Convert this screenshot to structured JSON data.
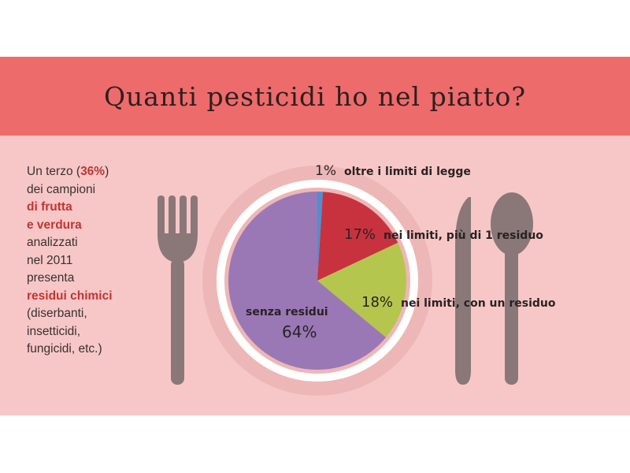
{
  "title": "Quanti pesticidi ho nel piatto?",
  "intro": {
    "t1": "Un terzo (",
    "pct": "36%",
    "t2": ")",
    "t3": "dei campioni",
    "t4": "di frutta",
    "t5": "e verdura",
    "t6": "analizzati",
    "t7": "nel 2011",
    "t8": "presenta",
    "t9": "residui chimici",
    "t10": "(diserbanti,",
    "t11": "insetticidi,",
    "t12": "fungicidi, etc.)"
  },
  "colors": {
    "banner": "#ee6b6b",
    "panel": "#f7c7c7",
    "cutlery": "#8a7878",
    "plate_rim": "#eeb7b7"
  },
  "chart_data": {
    "type": "pie",
    "title": "",
    "slices": [
      {
        "value": 1,
        "label": "1%",
        "text": "oltre i limiti di legge",
        "color": "#4f8fd1"
      },
      {
        "value": 17,
        "label": "17%",
        "text": "nei limiti, più di 1 residuo",
        "color": "#c8323e"
      },
      {
        "value": 18,
        "label": "18%",
        "text": "nei limiti, con un residuo",
        "color": "#b5c64e"
      },
      {
        "value": 64,
        "label": "64%",
        "text": "senza residui",
        "color": "#9a78b6"
      }
    ]
  }
}
